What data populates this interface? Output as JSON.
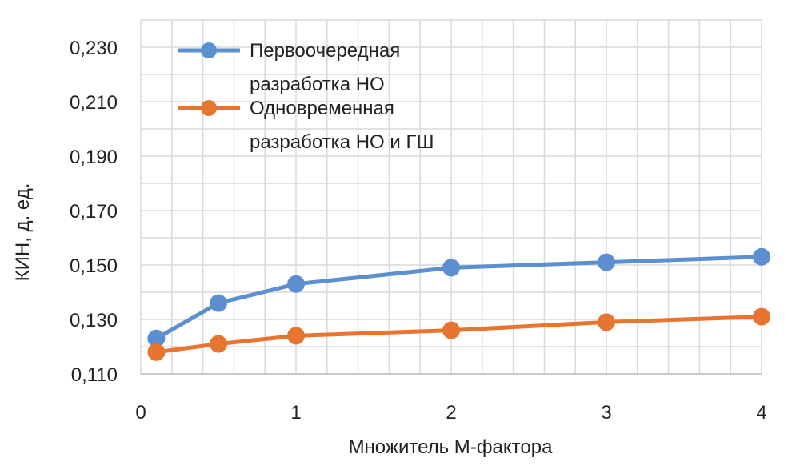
{
  "chart_data": {
    "type": "line",
    "title": "",
    "xlabel": "Множитель М-фактора",
    "ylabel": "КИН, д. ед.",
    "xlim": [
      0,
      4
    ],
    "ylim": [
      0.11,
      0.24
    ],
    "x_ticks": [
      "0",
      "1",
      "2",
      "3",
      "4"
    ],
    "y_ticks": [
      "0,110",
      "0,130",
      "0,150",
      "0,170",
      "0,190",
      "0,210",
      "0,230"
    ],
    "grid": true,
    "legend_position": "top-left",
    "series": [
      {
        "name_lines": [
          "Первоочередная",
          "разработка НО"
        ],
        "color": "#5b8fd0",
        "x": [
          0.1,
          0.5,
          1,
          2,
          3,
          4
        ],
        "y": [
          0.123,
          0.136,
          0.143,
          0.149,
          0.151,
          0.153
        ]
      },
      {
        "name_lines": [
          "Одновременная",
          "разработка НО и ГШ"
        ],
        "color": "#e8752f",
        "x": [
          0.1,
          0.5,
          1,
          2,
          3,
          4
        ],
        "y": [
          0.118,
          0.121,
          0.124,
          0.126,
          0.129,
          0.131
        ]
      }
    ]
  }
}
